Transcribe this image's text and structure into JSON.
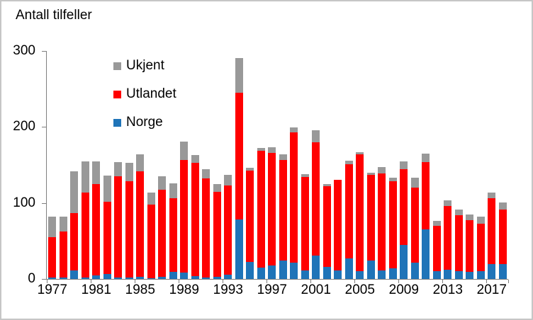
{
  "title": "Antall tilfeller",
  "colors": {
    "norge": "#1f74b8",
    "utlandet": "#ff0000",
    "ukjent": "#999999",
    "axis": "#7f7f7f",
    "text": "#000000",
    "border": "#c6c6c6",
    "background": "#ffffff"
  },
  "legend": [
    {
      "label": "Ukjent",
      "color_key": "ukjent"
    },
    {
      "label": "Utlandet",
      "color_key": "utlandet"
    },
    {
      "label": "Norge",
      "color_key": "norge"
    }
  ],
  "y_axis": {
    "ticks": [
      300,
      200,
      100,
      0
    ]
  },
  "x_axis": {
    "labeled_years": [
      1977,
      1981,
      1985,
      1989,
      1993,
      1997,
      2001,
      2005,
      2009,
      2013,
      2017
    ]
  },
  "chart_data": {
    "type": "bar",
    "stacked": true,
    "title": "Antall tilfeller",
    "ylabel": "Antall tilfeller",
    "ylim": [
      0,
      300
    ],
    "grid": false,
    "legend_position": "top-left-inside",
    "categories": [
      1977,
      1978,
      1979,
      1980,
      1981,
      1982,
      1983,
      1984,
      1985,
      1986,
      1987,
      1988,
      1989,
      1990,
      1991,
      1992,
      1993,
      1994,
      1995,
      1996,
      1997,
      1998,
      1999,
      2000,
      2001,
      2002,
      2003,
      2004,
      2005,
      2006,
      2007,
      2008,
      2009,
      2010,
      2011,
      2012,
      2013,
      2014,
      2015,
      2016,
      2017,
      2018
    ],
    "series": [
      {
        "name": "Norge",
        "color": "#1f74b8",
        "values": [
          2,
          2,
          11,
          2,
          5,
          7,
          2,
          2,
          3,
          1,
          3,
          9,
          8,
          4,
          2,
          3,
          6,
          78,
          22,
          15,
          18,
          24,
          21,
          11,
          31,
          16,
          11,
          27,
          10,
          24,
          11,
          14,
          45,
          21,
          65,
          10,
          12,
          10,
          9,
          10,
          20,
          20
        ]
      },
      {
        "name": "Utlandet",
        "color": "#ff0000",
        "values": [
          53,
          60,
          76,
          112,
          120,
          95,
          133,
          127,
          139,
          97,
          114,
          97,
          149,
          149,
          130,
          112,
          117,
          167,
          121,
          154,
          148,
          133,
          172,
          123,
          149,
          106,
          119,
          124,
          154,
          113,
          128,
          115,
          99,
          99,
          89,
          60,
          84,
          74,
          68,
          63,
          86,
          71
        ]
      },
      {
        "name": "Ukjent",
        "color": "#999999",
        "values": [
          27,
          20,
          55,
          41,
          30,
          34,
          19,
          24,
          22,
          16,
          18,
          20,
          24,
          10,
          12,
          10,
          14,
          46,
          3,
          3,
          7,
          7,
          6,
          4,
          16,
          3,
          0,
          5,
          3,
          3,
          8,
          4,
          11,
          13,
          11,
          6,
          7,
          7,
          8,
          9,
          8,
          10
        ]
      }
    ]
  }
}
